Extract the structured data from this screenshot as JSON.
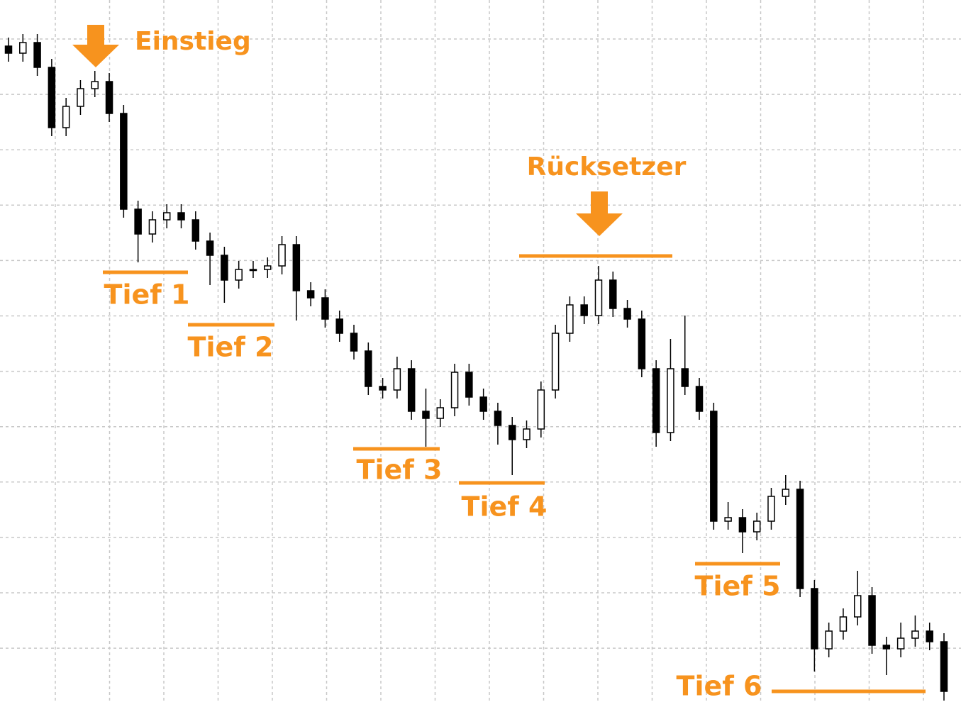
{
  "chart_data": {
    "type": "candlestick",
    "open": [
      935,
      925,
      940,
      905,
      820,
      850,
      875,
      885,
      840,
      705,
      670,
      690,
      700,
      690,
      660,
      640,
      605,
      620,
      620,
      625,
      655,
      590,
      580,
      550,
      530,
      505,
      455,
      450,
      480,
      420,
      410,
      425,
      475,
      440,
      420,
      400,
      380,
      395,
      450,
      530,
      570,
      555,
      605,
      565,
      550,
      480,
      390,
      480,
      455,
      420,
      265,
      270,
      250,
      265,
      300,
      310,
      170,
      85,
      110,
      130,
      160,
      90,
      85,
      100,
      110,
      95
    ],
    "high": [
      947,
      952,
      952,
      917,
      862,
      887,
      900,
      897,
      852,
      717,
      702,
      712,
      712,
      702,
      672,
      652,
      632,
      632,
      637,
      667,
      667,
      602,
      592,
      562,
      542,
      517,
      467,
      497,
      492,
      452,
      437,
      487,
      487,
      452,
      432,
      412,
      407,
      462,
      542,
      582,
      582,
      625,
      617,
      577,
      562,
      492,
      522,
      555,
      467,
      432,
      292,
      282,
      277,
      312,
      330,
      322,
      182,
      122,
      142,
      195,
      172,
      102,
      122,
      132,
      122,
      107
    ],
    "low": [
      913,
      913,
      893,
      808,
      808,
      838,
      863,
      828,
      693,
      630,
      658,
      678,
      678,
      648,
      598,
      573,
      593,
      608,
      608,
      613,
      548,
      568,
      538,
      518,
      493,
      443,
      438,
      438,
      408,
      370,
      398,
      413,
      428,
      408,
      373,
      330,
      368,
      383,
      438,
      518,
      543,
      543,
      553,
      538,
      468,
      370,
      378,
      443,
      408,
      253,
      253,
      220,
      238,
      253,
      288,
      158,
      53,
      73,
      98,
      118,
      78,
      48,
      73,
      88,
      83,
      12
    ],
    "close": [
      925,
      940,
      905,
      820,
      850,
      875,
      885,
      840,
      705,
      670,
      690,
      700,
      690,
      660,
      640,
      605,
      620,
      620,
      625,
      655,
      590,
      580,
      550,
      530,
      505,
      455,
      450,
      480,
      420,
      410,
      425,
      475,
      440,
      420,
      400,
      380,
      395,
      450,
      530,
      570,
      555,
      605,
      565,
      550,
      480,
      390,
      480,
      455,
      420,
      265,
      270,
      250,
      265,
      300,
      310,
      170,
      85,
      110,
      130,
      160,
      90,
      85,
      100,
      110,
      95,
      25
    ],
    "ylim": [
      10,
      1000
    ],
    "grid": true,
    "up_color": "#ffffff",
    "down_color": "#000000",
    "annotation_color": "#f7931e",
    "annotations": [
      {
        "text": "Einstieg"
      },
      {
        "text": "Rücksetzer",
        "level": 639
      },
      {
        "text": "Tief 1",
        "level": 616
      },
      {
        "text": "Tief 2",
        "level": 542
      },
      {
        "text": "Tief 3",
        "level": 367
      },
      {
        "text": "Tief 4",
        "level": 319
      },
      {
        "text": "Tief 5",
        "level": 205
      },
      {
        "text": "Tief 6",
        "level": 25
      }
    ]
  }
}
